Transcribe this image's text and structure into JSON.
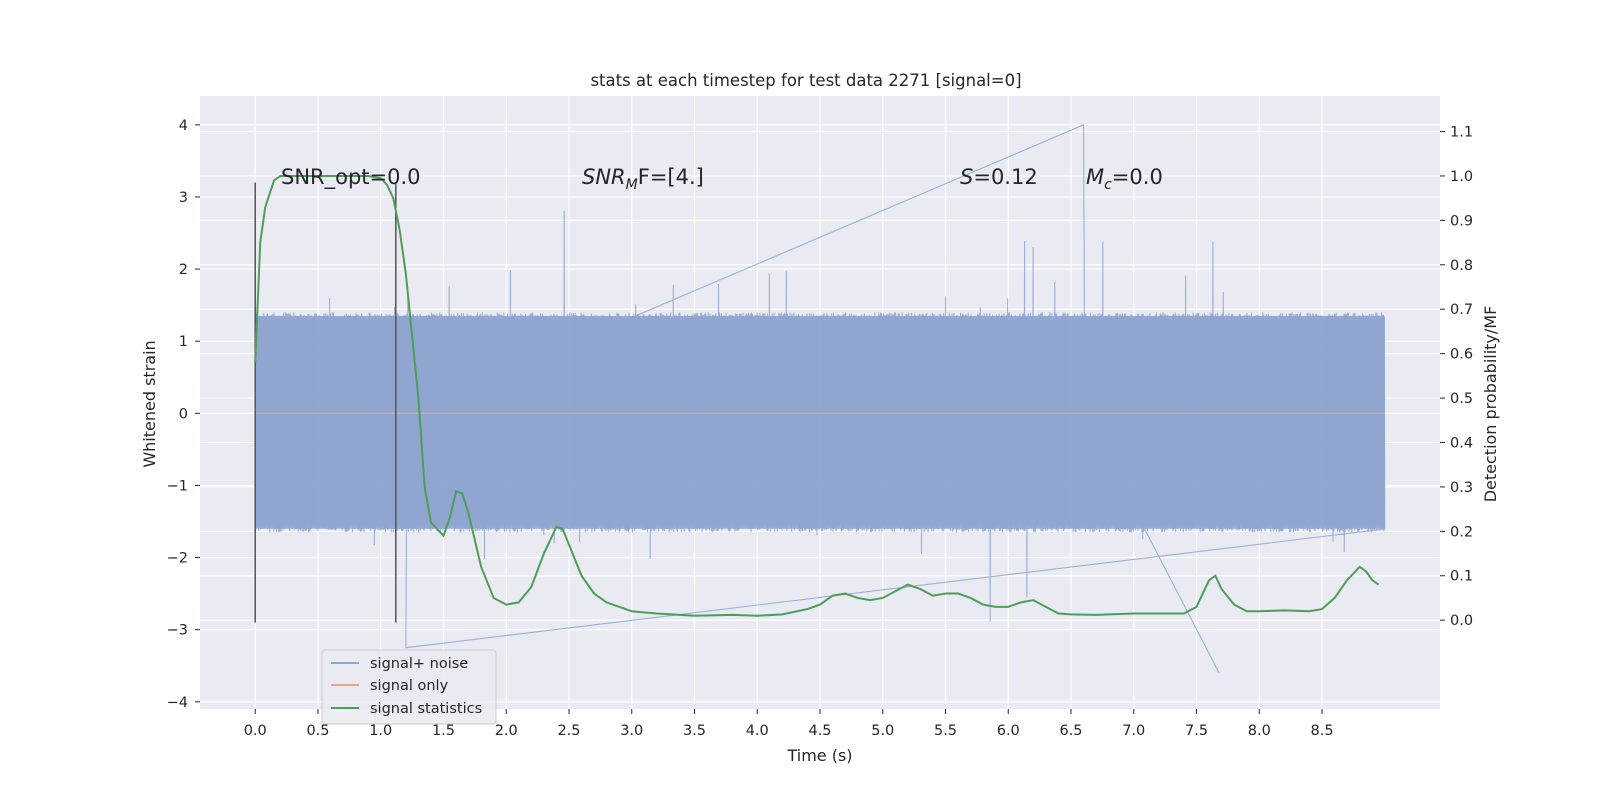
{
  "chart_data": {
    "type": "line",
    "title": "stats at each timestep for test data 2271 [signal=0]",
    "xlabel": "Time (s)",
    "ylabel": "Whitened strain",
    "ylabel_right": "Detection probability/MF",
    "xlim": [
      -0.44,
      9.44
    ],
    "ylim": [
      -4.1,
      4.4
    ],
    "ylim_right": [
      -0.2,
      1.18
    ],
    "x_ticks": [
      "0.0",
      "0.5",
      "1.0",
      "1.5",
      "2.0",
      "2.5",
      "3.0",
      "3.5",
      "4.0",
      "4.5",
      "5.0",
      "5.5",
      "6.0",
      "6.5",
      "7.0",
      "7.5",
      "8.0",
      "8.5"
    ],
    "y_ticks": [
      "4",
      "3",
      "2",
      "1",
      "0",
      "−1",
      "−2",
      "−3",
      "−4"
    ],
    "y_right_ticks": [
      "1.1",
      "1.0",
      "0.9",
      "0.8",
      "0.7",
      "0.6",
      "0.5",
      "0.4",
      "0.3",
      "0.2",
      "0.1",
      "0.0"
    ],
    "grid": true,
    "legend_position": "lower-left",
    "annotations": {
      "snr_opt": "SNR_opt=0.0",
      "snr_mf_prefix": "SNR",
      "snr_mf_sub": "M",
      "snr_mf_suffix": "F=[4.]",
      "s_var": "S",
      "s_value": "=0.12",
      "mc_var": "M",
      "mc_sub": "c",
      "mc_value": "=0.0"
    },
    "series": [
      {
        "name": "signal+ noise",
        "color": "#8fa5cf",
        "kind": "noise",
        "x_range": [
          0.0,
          9.0
        ],
        "typical_band": [
          -1.6,
          1.35
        ],
        "max_peak": 4.0,
        "min_peak": -3.6
      },
      {
        "name": "signal only",
        "color": "#e8a58a",
        "kind": "flat",
        "x_range": [
          0.0,
          9.0
        ],
        "value": 0.0
      },
      {
        "name": "signal statistics",
        "color": "#4c9e59",
        "axis": "right",
        "x": [
          0.0,
          0.04,
          0.08,
          0.15,
          0.2,
          0.3,
          0.5,
          0.7,
          0.9,
          1.0,
          1.05,
          1.1,
          1.15,
          1.2,
          1.3,
          1.35,
          1.4,
          1.5,
          1.55,
          1.6,
          1.65,
          1.7,
          1.8,
          1.9,
          2.0,
          2.1,
          2.2,
          2.3,
          2.4,
          2.45,
          2.5,
          2.6,
          2.7,
          2.8,
          2.9,
          3.0,
          3.2,
          3.5,
          3.8,
          4.0,
          4.2,
          4.4,
          4.5,
          4.6,
          4.7,
          4.8,
          4.9,
          5.0,
          5.1,
          5.2,
          5.3,
          5.4,
          5.5,
          5.6,
          5.7,
          5.8,
          5.9,
          6.0,
          6.1,
          6.2,
          6.3,
          6.4,
          6.5,
          6.7,
          7.0,
          7.2,
          7.4,
          7.5,
          7.6,
          7.65,
          7.7,
          7.8,
          7.9,
          8.0,
          8.2,
          8.4,
          8.5,
          8.6,
          8.7,
          8.8,
          8.85,
          8.9,
          8.95
        ],
        "y": [
          0.58,
          0.85,
          0.93,
          0.99,
          1.0,
          1.0,
          1.0,
          1.0,
          1.0,
          0.995,
          0.98,
          0.95,
          0.88,
          0.78,
          0.5,
          0.3,
          0.22,
          0.19,
          0.23,
          0.29,
          0.285,
          0.24,
          0.12,
          0.05,
          0.035,
          0.04,
          0.075,
          0.15,
          0.21,
          0.205,
          0.17,
          0.1,
          0.06,
          0.04,
          0.03,
          0.02,
          0.015,
          0.01,
          0.012,
          0.01,
          0.013,
          0.025,
          0.035,
          0.055,
          0.06,
          0.05,
          0.045,
          0.05,
          0.065,
          0.08,
          0.07,
          0.055,
          0.06,
          0.06,
          0.05,
          0.035,
          0.03,
          0.03,
          0.04,
          0.045,
          0.03,
          0.015,
          0.013,
          0.012,
          0.015,
          0.015,
          0.015,
          0.03,
          0.09,
          0.1,
          0.07,
          0.035,
          0.02,
          0.02,
          0.022,
          0.02,
          0.025,
          0.05,
          0.09,
          0.12,
          0.11,
          0.09,
          0.08
        ]
      }
    ],
    "vertical_markers": [
      0.0,
      1.12
    ]
  }
}
